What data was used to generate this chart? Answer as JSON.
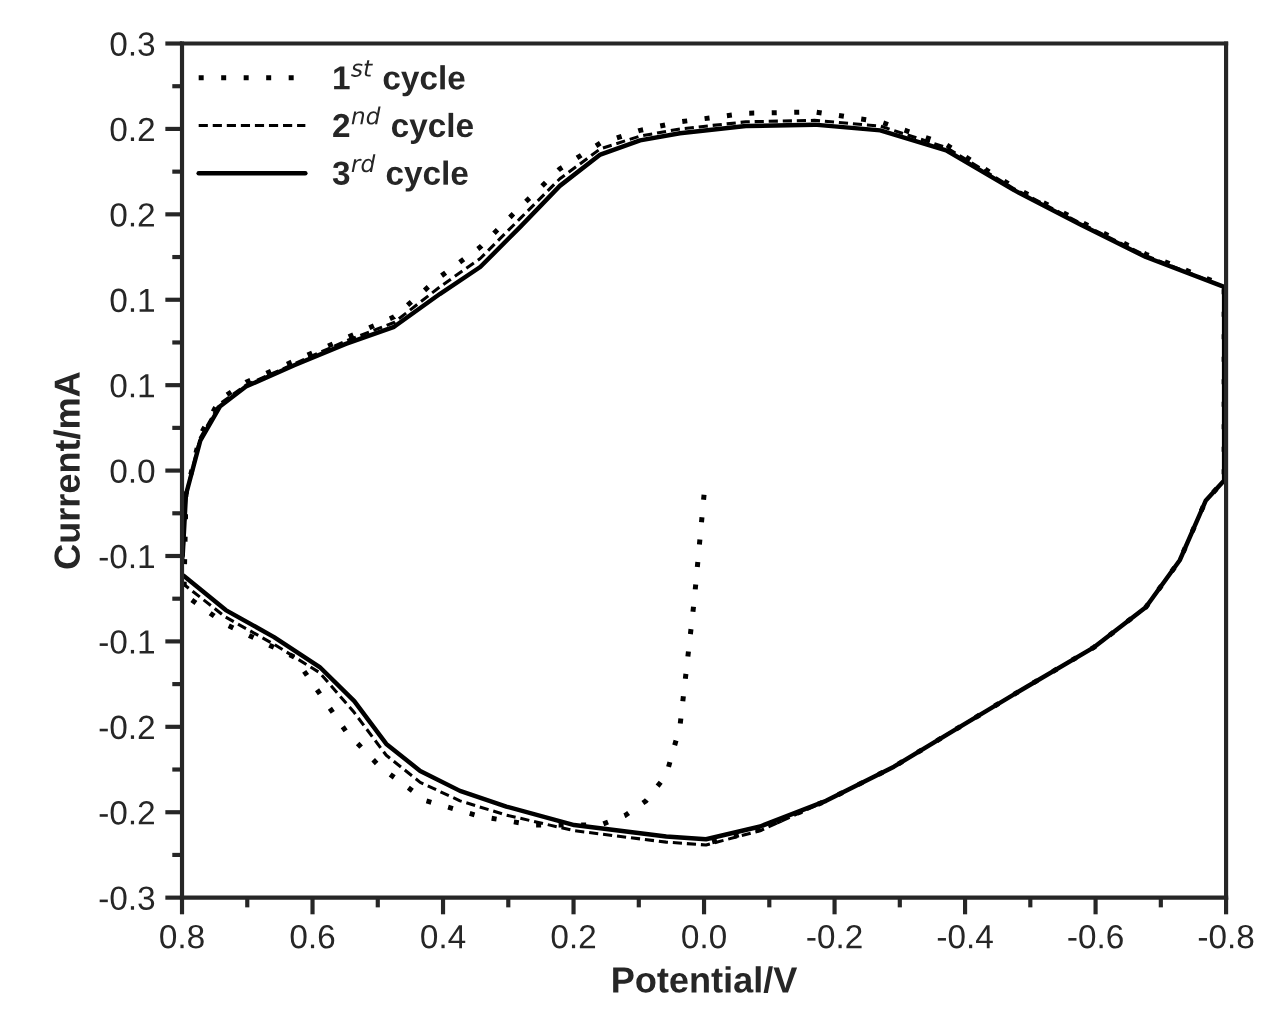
{
  "chart_data": {
    "type": "line",
    "xlabel": "Potential/V",
    "ylabel": "Current/mA",
    "xlim": [
      0.8,
      -0.8
    ],
    "ylim": [
      -0.3,
      0.3
    ],
    "xticks": [
      {
        "value": 0.8,
        "label": "0.8"
      },
      {
        "value": 0.7,
        "label": null
      },
      {
        "value": 0.6,
        "label": "0.6"
      },
      {
        "value": 0.5,
        "label": null
      },
      {
        "value": 0.4,
        "label": "0.4"
      },
      {
        "value": 0.3,
        "label": null
      },
      {
        "value": 0.2,
        "label": "0.2"
      },
      {
        "value": 0.1,
        "label": null
      },
      {
        "value": 0.0,
        "label": "0.0"
      },
      {
        "value": -0.1,
        "label": null
      },
      {
        "value": -0.2,
        "label": "-0.2"
      },
      {
        "value": -0.3,
        "label": null
      },
      {
        "value": -0.4,
        "label": "-0.4"
      },
      {
        "value": -0.5,
        "label": null
      },
      {
        "value": -0.6,
        "label": "-0.6"
      },
      {
        "value": -0.7,
        "label": null
      },
      {
        "value": -0.8,
        "label": "-0.8"
      }
    ],
    "yticks": [
      {
        "value": 0.3,
        "label": "0.3"
      },
      {
        "value": 0.27,
        "label": null
      },
      {
        "value": 0.24,
        "label": "0.2"
      },
      {
        "value": 0.21,
        "label": null
      },
      {
        "value": 0.18,
        "label": "0.2"
      },
      {
        "value": 0.15,
        "label": null
      },
      {
        "value": 0.12,
        "label": "0.1"
      },
      {
        "value": 0.09,
        "label": null
      },
      {
        "value": 0.06,
        "label": "0.1"
      },
      {
        "value": 0.03,
        "label": null
      },
      {
        "value": 0.0,
        "label": "0.0"
      },
      {
        "value": -0.03,
        "label": null
      },
      {
        "value": -0.06,
        "label": "-0.1"
      },
      {
        "value": -0.09,
        "label": null
      },
      {
        "value": -0.12,
        "label": "-0.1"
      },
      {
        "value": -0.15,
        "label": null
      },
      {
        "value": -0.18,
        "label": "-0.2"
      },
      {
        "value": -0.21,
        "label": null
      },
      {
        "value": -0.24,
        "label": "-0.2"
      },
      {
        "value": -0.27,
        "label": null
      },
      {
        "value": -0.3,
        "label": "-0.3"
      }
    ],
    "legend": "top left",
    "grid": false,
    "series": [
      {
        "name": "1$^{st}$ cycle",
        "color": "#000000",
        "line_style": "dotted",
        "x": [
          0.0,
          0.015,
          0.037,
          0.058,
          0.089,
          0.12,
          0.159,
          0.261,
          0.343,
          0.426,
          0.497,
          0.549,
          0.628,
          0.733,
          0.797,
          0.794,
          0.772,
          0.742,
          0.702,
          0.628,
          0.549,
          0.475,
          0.405,
          0.343,
          0.282,
          0.221,
          0.159,
          0.098,
          0.037,
          -0.064,
          -0.169,
          -0.27,
          -0.371,
          -0.475,
          -0.576,
          -0.677,
          -0.797,
          -0.797,
          -0.797,
          -0.769,
          -0.729,
          -0.677,
          -0.598,
          -0.494,
          -0.392,
          -0.291,
          -0.187,
          -0.086,
          -0.003
        ],
        "values": [
          -0.017,
          -0.091,
          -0.18,
          -0.214,
          -0.232,
          -0.242,
          -0.249,
          -0.249,
          -0.243,
          -0.232,
          -0.208,
          -0.183,
          -0.131,
          -0.108,
          -0.087,
          -0.017,
          0.025,
          0.05,
          0.062,
          0.077,
          0.093,
          0.108,
          0.136,
          0.157,
          0.185,
          0.212,
          0.23,
          0.239,
          0.245,
          0.251,
          0.252,
          0.245,
          0.229,
          0.199,
          0.175,
          0.152,
          0.13,
          0.049,
          -0.007,
          -0.021,
          -0.063,
          -0.096,
          -0.124,
          -0.152,
          -0.18,
          -0.208,
          -0.232,
          -0.252,
          -0.262
        ]
      },
      {
        "name": "2$^{nd}$ cycle",
        "color": "#000000",
        "line_style": "dashed",
        "x": [
          0.799,
          0.794,
          0.772,
          0.742,
          0.702,
          0.628,
          0.549,
          0.475,
          0.405,
          0.343,
          0.282,
          0.221,
          0.159,
          0.098,
          0.037,
          -0.064,
          -0.169,
          -0.27,
          -0.371,
          -0.475,
          -0.576,
          -0.677,
          -0.797,
          -0.797,
          -0.797,
          -0.769,
          -0.729,
          -0.677,
          -0.598,
          -0.494,
          -0.392,
          -0.291,
          -0.187,
          -0.086,
          -0.003,
          0.058,
          0.199,
          0.303,
          0.374,
          0.435,
          0.487,
          0.536,
          0.589,
          0.659,
          0.733,
          0.797
        ],
        "values": [
          -0.065,
          -0.017,
          0.023,
          0.047,
          0.06,
          0.075,
          0.091,
          0.104,
          0.129,
          0.149,
          0.177,
          0.205,
          0.226,
          0.235,
          0.24,
          0.245,
          0.246,
          0.242,
          0.227,
          0.198,
          0.174,
          0.151,
          0.129,
          0.049,
          -0.007,
          -0.021,
          -0.063,
          -0.096,
          -0.124,
          -0.152,
          -0.18,
          -0.208,
          -0.232,
          -0.253,
          -0.263,
          -0.261,
          -0.253,
          -0.242,
          -0.232,
          -0.219,
          -0.2,
          -0.17,
          -0.142,
          -0.122,
          -0.103,
          -0.08
        ]
      },
      {
        "name": "3$^{rd}$ cycle",
        "color": "#000000",
        "line_style": "solid",
        "x": [
          0.799,
          0.794,
          0.772,
          0.742,
          0.702,
          0.628,
          0.549,
          0.475,
          0.405,
          0.343,
          0.282,
          0.221,
          0.159,
          0.098,
          0.037,
          -0.064,
          -0.169,
          -0.27,
          -0.371,
          -0.475,
          -0.576,
          -0.677,
          -0.797,
          -0.797,
          -0.797,
          -0.769,
          -0.729,
          -0.677,
          -0.598,
          -0.494,
          -0.392,
          -0.291,
          -0.187,
          -0.086,
          -0.003,
          0.058,
          0.199,
          0.303,
          0.374,
          0.435,
          0.487,
          0.536,
          0.589,
          0.659,
          0.733,
          0.797
        ],
        "values": [
          -0.06,
          -0.017,
          0.021,
          0.045,
          0.059,
          0.074,
          0.089,
          0.101,
          0.124,
          0.143,
          0.171,
          0.2,
          0.222,
          0.232,
          0.237,
          0.242,
          0.243,
          0.239,
          0.225,
          0.197,
          0.173,
          0.15,
          0.129,
          0.049,
          -0.007,
          -0.021,
          -0.063,
          -0.096,
          -0.124,
          -0.152,
          -0.18,
          -0.208,
          -0.232,
          -0.25,
          -0.259,
          -0.257,
          -0.249,
          -0.236,
          -0.225,
          -0.211,
          -0.192,
          -0.162,
          -0.138,
          -0.117,
          -0.098,
          -0.074
        ]
      }
    ]
  }
}
